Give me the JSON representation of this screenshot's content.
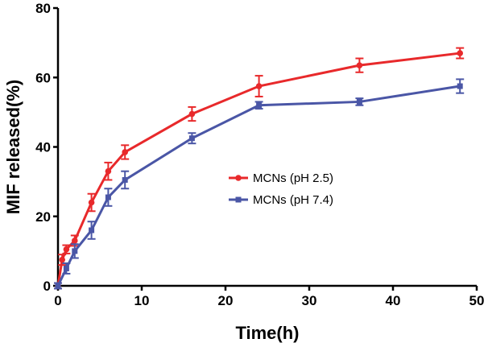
{
  "chart_data": {
    "type": "line",
    "title": "",
    "xlabel": "Time(h)",
    "ylabel": "MIF released(%)",
    "xlim": [
      0,
      50
    ],
    "ylim": [
      0,
      80
    ],
    "xticks": [
      0,
      10,
      20,
      30,
      40,
      50
    ],
    "yticks": [
      0,
      20,
      40,
      60,
      80
    ],
    "xtick_labels": [
      "0",
      "10",
      "20",
      "30",
      "40",
      "50"
    ],
    "ytick_labels": [
      "0",
      "20",
      "40",
      "60",
      "80"
    ],
    "grid": false,
    "legend_position": "center-right",
    "series": [
      {
        "name": "MCNs (pH 2.5)",
        "color": "#e8292b",
        "x": [
          0,
          0.5,
          1,
          2,
          4,
          6,
          8,
          16,
          24,
          36,
          48
        ],
        "y": [
          0,
          7.5,
          10.5,
          13,
          24,
          33,
          38.5,
          49.5,
          57.5,
          63.5,
          67
        ],
        "err": [
          0.8,
          1.5,
          1.2,
          1.5,
          2.5,
          2.5,
          2.0,
          2.0,
          3.0,
          2.0,
          1.5
        ]
      },
      {
        "name": "MCNs (pH 7.4)",
        "color": "#4a56a6",
        "x": [
          0,
          1,
          2,
          4,
          6,
          8,
          16,
          24,
          36,
          48
        ],
        "y": [
          0,
          5,
          10,
          16,
          25.5,
          30.5,
          42.5,
          52,
          53,
          57.5
        ],
        "err": [
          0.8,
          1.5,
          2.0,
          2.5,
          2.5,
          2.5,
          1.5,
          1.0,
          1.0,
          2.0
        ]
      }
    ]
  }
}
